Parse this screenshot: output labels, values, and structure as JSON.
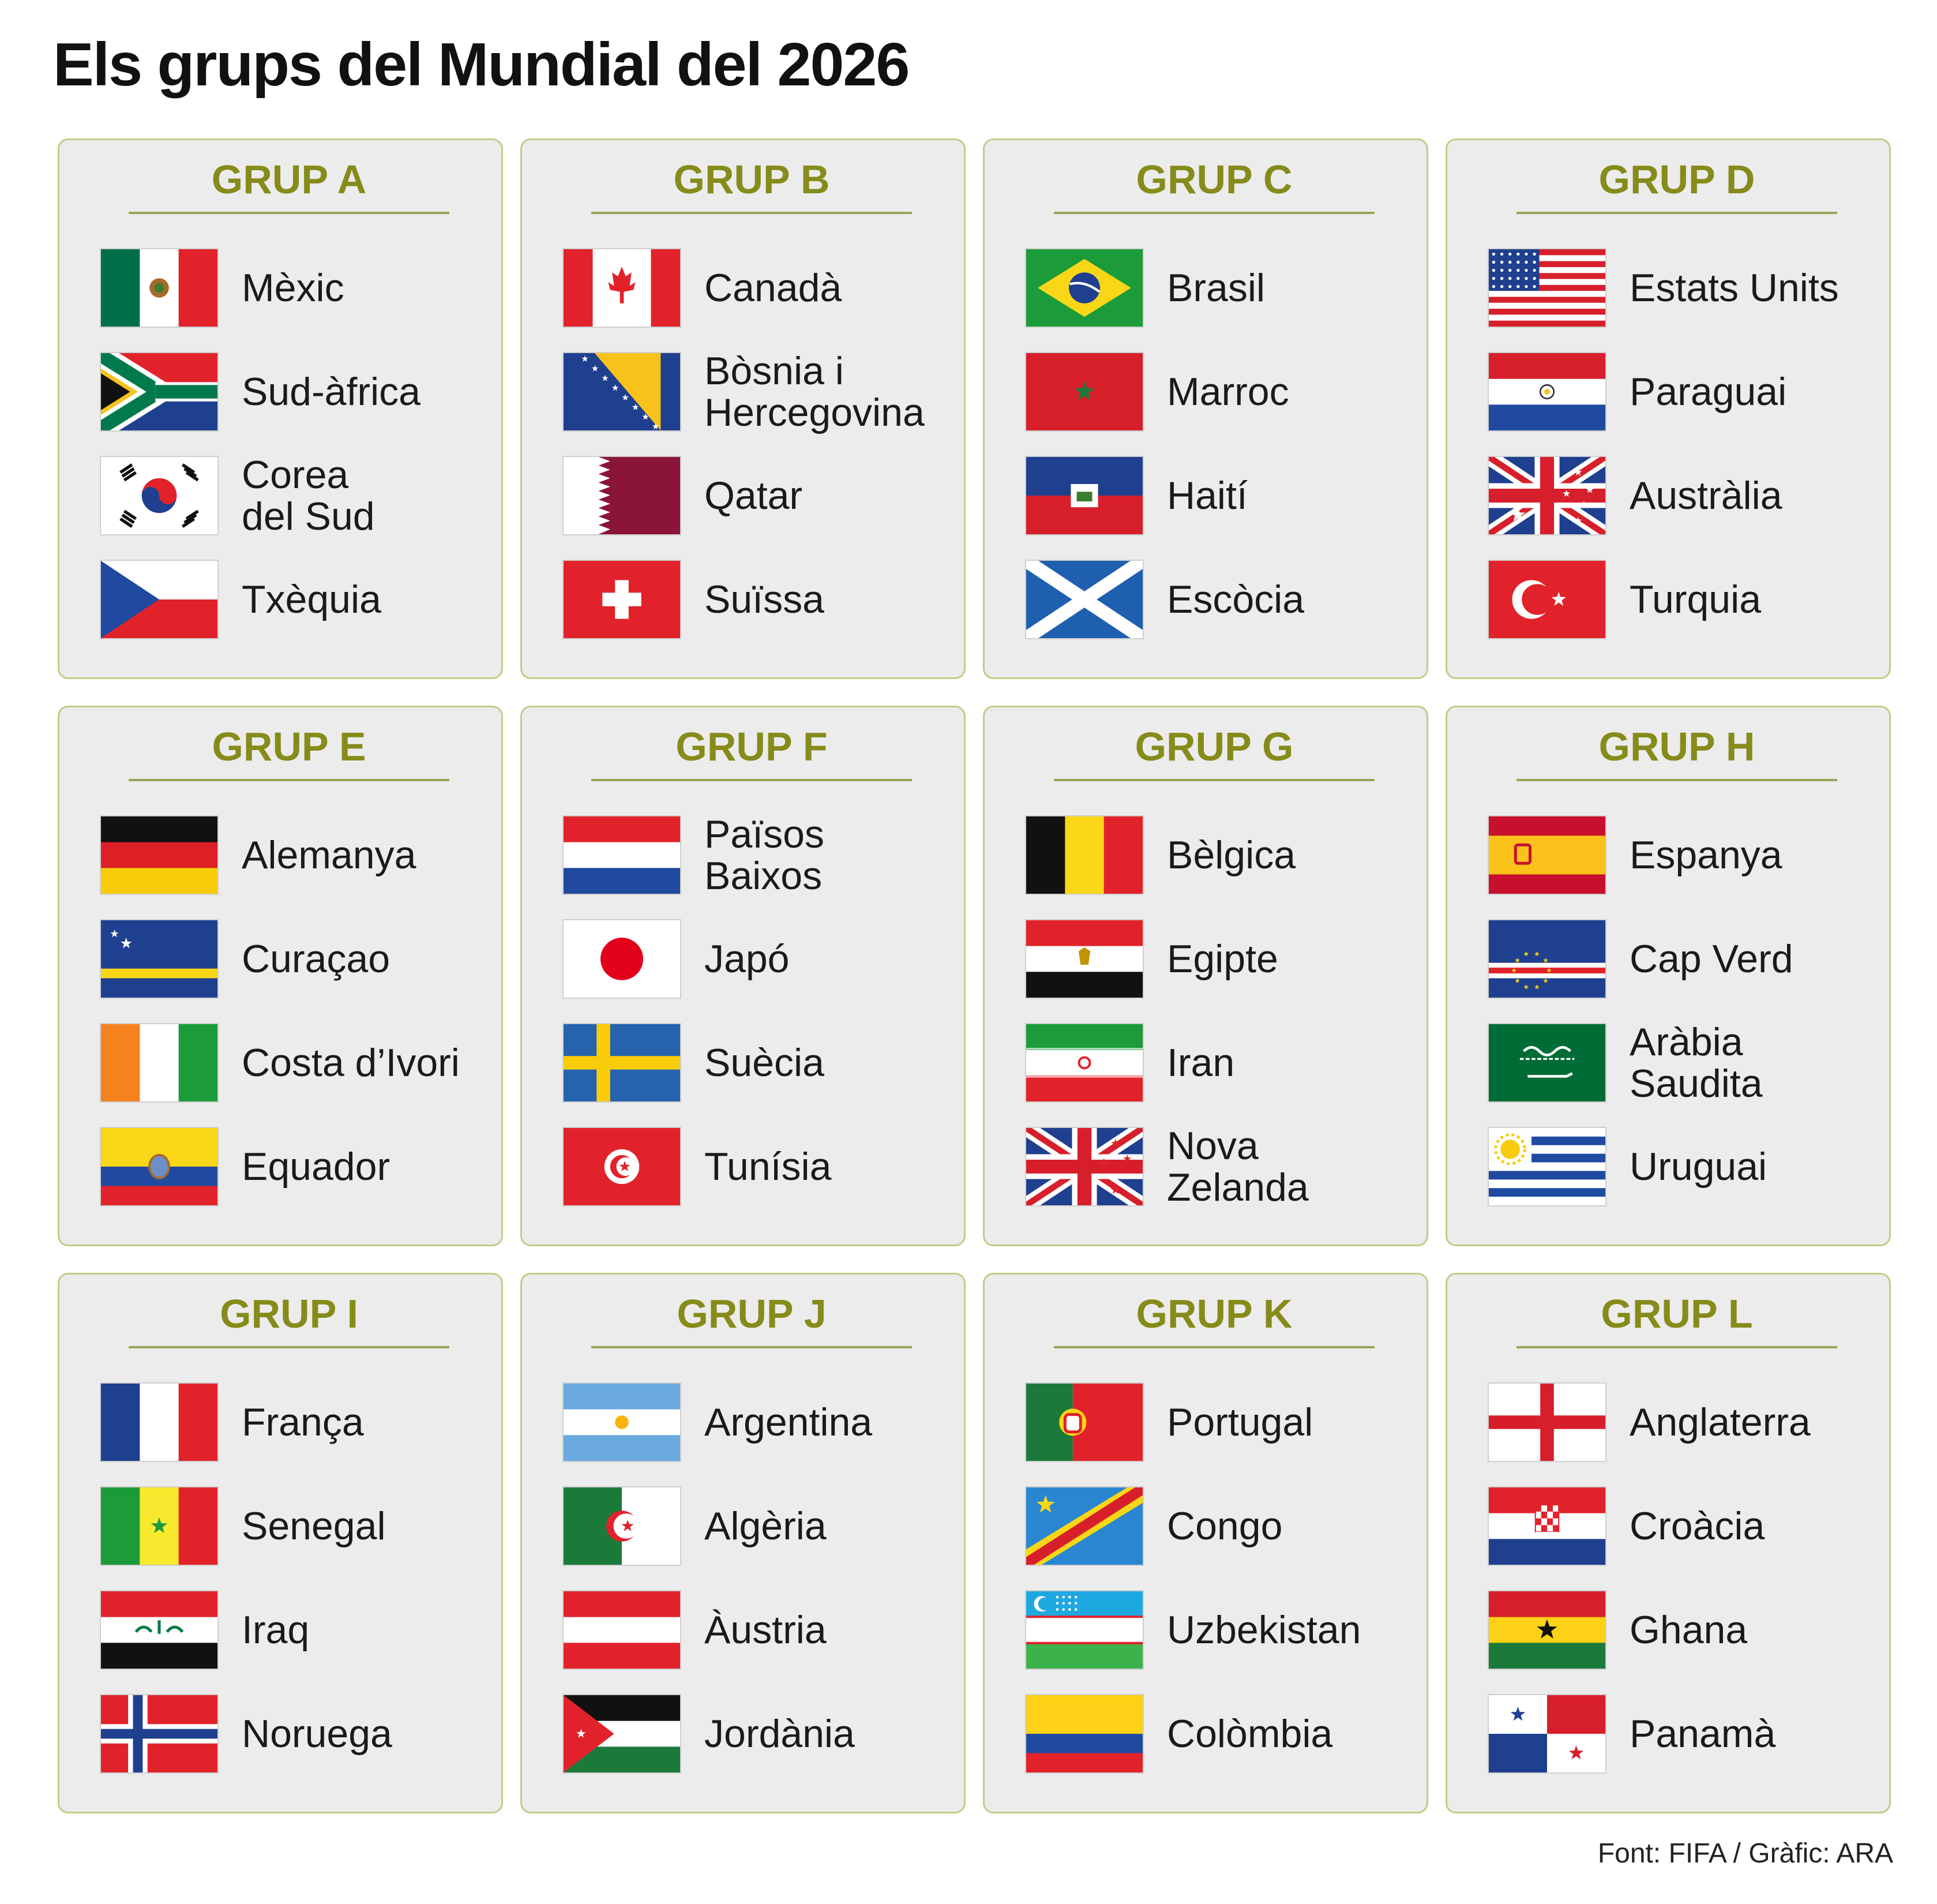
{
  "title": "Els grups del Mundial del 2026",
  "source": "Font: FIFA / Gràfic: ARA",
  "colors": {
    "panel_background": "#ececec",
    "panel_border": "#c2cc84",
    "group_title": "#868b1a"
  },
  "groups": [
    {
      "name": "GRUP A",
      "teams": [
        {
          "name": "Mèxic",
          "flag": "mexico-flag-icon"
        },
        {
          "name": "Sud-àfrica",
          "flag": "south-africa-flag-icon"
        },
        {
          "name": "Corea del Sud",
          "flag": "south-korea-flag-icon"
        },
        {
          "name": "Txèquia",
          "flag": "czechia-flag-icon"
        }
      ]
    },
    {
      "name": "GRUP B",
      "teams": [
        {
          "name": "Canadà",
          "flag": "canada-flag-icon"
        },
        {
          "name": "Bòsnia i Hercegovina",
          "flag": "bosnia-flag-icon"
        },
        {
          "name": "Qatar",
          "flag": "qatar-flag-icon"
        },
        {
          "name": "Suïssa",
          "flag": "switzerland-flag-icon"
        }
      ]
    },
    {
      "name": "GRUP C",
      "teams": [
        {
          "name": "Brasil",
          "flag": "brazil-flag-icon"
        },
        {
          "name": "Marroc",
          "flag": "morocco-flag-icon"
        },
        {
          "name": "Haití",
          "flag": "haiti-flag-icon"
        },
        {
          "name": "Escòcia",
          "flag": "scotland-flag-icon"
        }
      ]
    },
    {
      "name": "GRUP D",
      "teams": [
        {
          "name": "Estats Units",
          "flag": "usa-flag-icon"
        },
        {
          "name": "Paraguai",
          "flag": "paraguay-flag-icon"
        },
        {
          "name": "Austràlia",
          "flag": "australia-flag-icon"
        },
        {
          "name": "Turquia",
          "flag": "turkey-flag-icon"
        }
      ]
    },
    {
      "name": "GRUP E",
      "teams": [
        {
          "name": "Alemanya",
          "flag": "germany-flag-icon"
        },
        {
          "name": "Curaçao",
          "flag": "curacao-flag-icon"
        },
        {
          "name": "Costa d’Ivori",
          "flag": "ivory-coast-flag-icon"
        },
        {
          "name": "Equador",
          "flag": "ecuador-flag-icon"
        }
      ]
    },
    {
      "name": "GRUP F",
      "teams": [
        {
          "name": "Països Baixos",
          "flag": "netherlands-flag-icon"
        },
        {
          "name": "Japó",
          "flag": "japan-flag-icon"
        },
        {
          "name": "Suècia",
          "flag": "sweden-flag-icon"
        },
        {
          "name": "Tunísia",
          "flag": "tunisia-flag-icon"
        }
      ]
    },
    {
      "name": "GRUP G",
      "teams": [
        {
          "name": "Bèlgica",
          "flag": "belgium-flag-icon"
        },
        {
          "name": "Egipte",
          "flag": "egypt-flag-icon"
        },
        {
          "name": "Iran",
          "flag": "iran-flag-icon"
        },
        {
          "name": "Nova Zelanda",
          "flag": "new-zealand-flag-icon"
        }
      ]
    },
    {
      "name": "GRUP H",
      "teams": [
        {
          "name": "Espanya",
          "flag": "spain-flag-icon"
        },
        {
          "name": "Cap Verd",
          "flag": "cape-verde-flag-icon"
        },
        {
          "name": "Aràbia Saudita",
          "flag": "saudi-arabia-flag-icon"
        },
        {
          "name": "Uruguai",
          "flag": "uruguay-flag-icon"
        }
      ]
    },
    {
      "name": "GRUP I",
      "teams": [
        {
          "name": "França",
          "flag": "france-flag-icon"
        },
        {
          "name": "Senegal",
          "flag": "senegal-flag-icon"
        },
        {
          "name": "Iraq",
          "flag": "iraq-flag-icon"
        },
        {
          "name": "Noruega",
          "flag": "norway-flag-icon"
        }
      ]
    },
    {
      "name": "GRUP J",
      "teams": [
        {
          "name": "Argentina",
          "flag": "argentina-flag-icon"
        },
        {
          "name": "Algèria",
          "flag": "algeria-flag-icon"
        },
        {
          "name": "Àustria",
          "flag": "austria-flag-icon"
        },
        {
          "name": "Jordània",
          "flag": "jordan-flag-icon"
        }
      ]
    },
    {
      "name": "GRUP K",
      "teams": [
        {
          "name": "Portugal",
          "flag": "portugal-flag-icon"
        },
        {
          "name": "Congo",
          "flag": "dr-congo-flag-icon"
        },
        {
          "name": "Uzbekistan",
          "flag": "uzbekistan-flag-icon"
        },
        {
          "name": "Colòmbia",
          "flag": "colombia-flag-icon"
        }
      ]
    },
    {
      "name": "GRUP L",
      "teams": [
        {
          "name": "Anglaterra",
          "flag": "england-flag-icon"
        },
        {
          "name": "Croàcia",
          "flag": "croatia-flag-icon"
        },
        {
          "name": "Ghana",
          "flag": "ghana-flag-icon"
        },
        {
          "name": "Panamà",
          "flag": "panama-flag-icon"
        }
      ]
    }
  ]
}
